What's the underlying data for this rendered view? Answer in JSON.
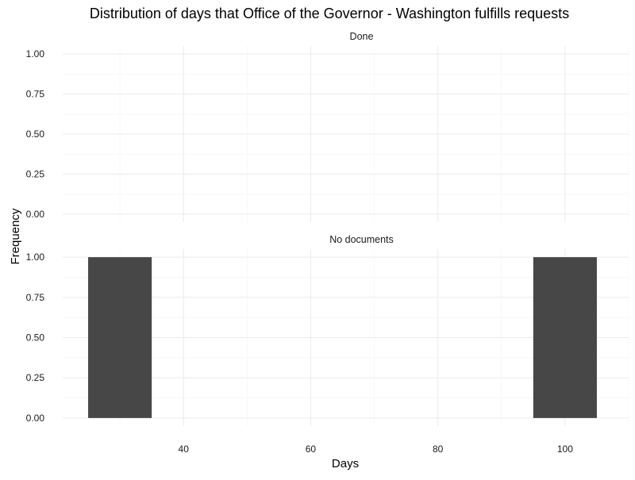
{
  "chart_data": {
    "type": "bar",
    "title": "Distribution of days that Office of the Governor - Washington fulfills requests",
    "xlabel": "Days",
    "ylabel": "Frequency",
    "xlim": [
      21,
      110
    ],
    "ylim": [
      -0.05,
      1.05
    ],
    "x_ticks": [
      40,
      60,
      80,
      100
    ],
    "x_tick_labels": [
      "40",
      "60",
      "80",
      "100"
    ],
    "y_ticks": [
      0,
      0.25,
      0.5,
      0.75,
      1.0
    ],
    "y_tick_labels": [
      "0.00",
      "0.25",
      "0.50",
      "0.75",
      "1.00"
    ],
    "grid": true,
    "bar_color": "#474747",
    "panels": [
      {
        "name": "Done",
        "bars": []
      },
      {
        "name": "No documents",
        "bars": [
          {
            "x_start": 25,
            "x_end": 35,
            "count": 1
          },
          {
            "x_start": 95,
            "x_end": 105,
            "count": 1
          }
        ]
      }
    ]
  }
}
